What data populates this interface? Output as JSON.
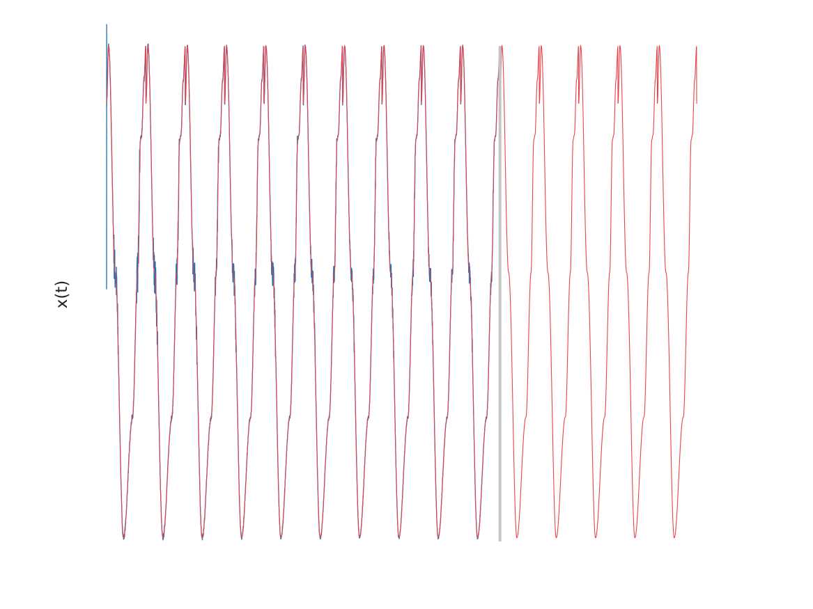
{
  "chart_data": {
    "type": "line",
    "title": "",
    "xlabel": "",
    "ylabel": "x(t)",
    "grid": false,
    "axes_visible": false,
    "legend": "none",
    "x_range": [
      0,
      15
    ],
    "y_range": [
      -1.1,
      1.05
    ],
    "split_x": 10,
    "split_color": "#c4c4c4",
    "series": [
      {
        "color": "#1f6fb2",
        "role": "observed",
        "x_range": [
          0,
          10
        ],
        "start_x": 0,
        "start_y": -0.02,
        "spike_y": 1.08,
        "noise_amplitude": 0.05
      },
      {
        "color": "#e8424a",
        "role": "model",
        "x_range": [
          0,
          15
        ],
        "period": 1,
        "shape_knots_x": [
          0,
          0.05,
          0.22,
          0.43,
          0.66,
          0.79,
          0.86,
          0.89,
          0.95,
          1
        ],
        "shape_knots_y": [
          0.75,
          0.99,
          0.05,
          -1.05,
          -0.55,
          0.05,
          0.6,
          0.62,
          0.85,
          0.99
        ]
      }
    ]
  }
}
